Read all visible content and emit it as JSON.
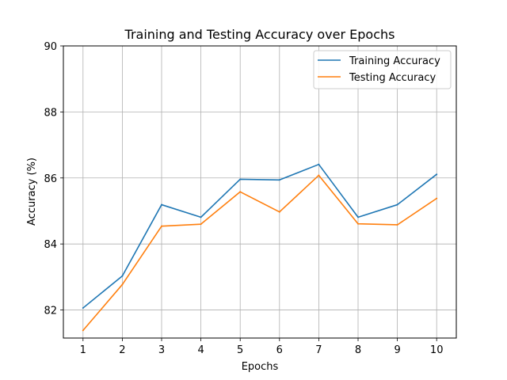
{
  "chart_data": {
    "type": "line",
    "title": "Training and Testing Accuracy over Epochs",
    "xlabel": "Epochs",
    "ylabel": "Accuracy (%)",
    "x": [
      1,
      2,
      3,
      4,
      5,
      6,
      7,
      8,
      9,
      10
    ],
    "xlim": [
      0.5,
      10.5
    ],
    "ylim": [
      81.15,
      90
    ],
    "yticks": [
      82,
      84,
      86,
      88,
      90
    ],
    "grid": true,
    "legend_position": "top-right",
    "series": [
      {
        "name": "Training Accuracy",
        "color": "#1f77b4",
        "values": [
          82.06,
          83.03,
          85.19,
          84.81,
          85.96,
          85.94,
          86.41,
          84.81,
          85.19,
          86.11
        ]
      },
      {
        "name": "Testing Accuracy",
        "color": "#ff7f0e",
        "values": [
          81.38,
          82.77,
          84.54,
          84.6,
          85.58,
          84.97,
          86.08,
          84.61,
          84.58,
          85.38
        ]
      }
    ]
  }
}
